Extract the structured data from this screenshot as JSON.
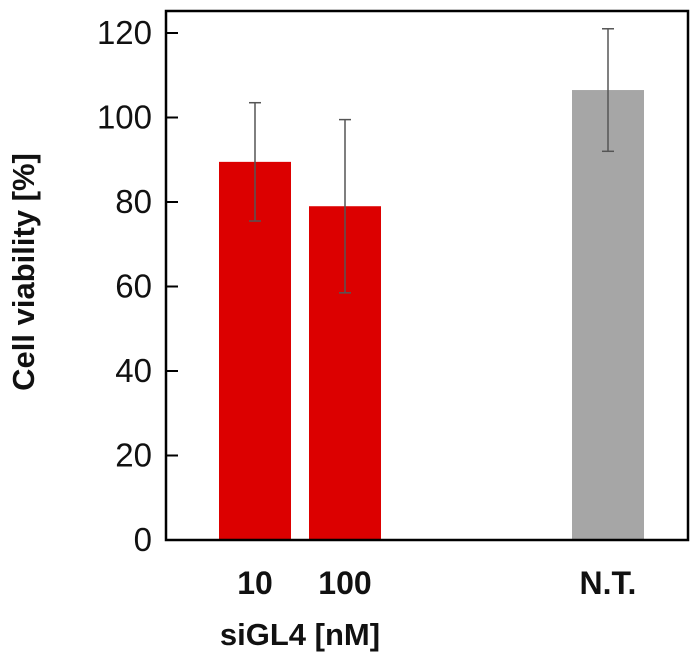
{
  "chart_data": {
    "type": "bar",
    "categories": [
      "10",
      "100",
      "N.T."
    ],
    "values": [
      89.5,
      79,
      106.5
    ],
    "errors": [
      14,
      20.5,
      14.5
    ],
    "colors": [
      "#dc0000",
      "#dc0000",
      "#a6a6a6"
    ],
    "error_color": "#555555",
    "axis_color": "#000000",
    "title": "",
    "xlabel": "siGL4 [nM]",
    "ylabel": "Cell viability [%]",
    "ylim": [
      0,
      120
    ],
    "yticks": [
      0,
      20,
      40,
      60,
      80,
      100,
      120
    ],
    "grid": false
  }
}
